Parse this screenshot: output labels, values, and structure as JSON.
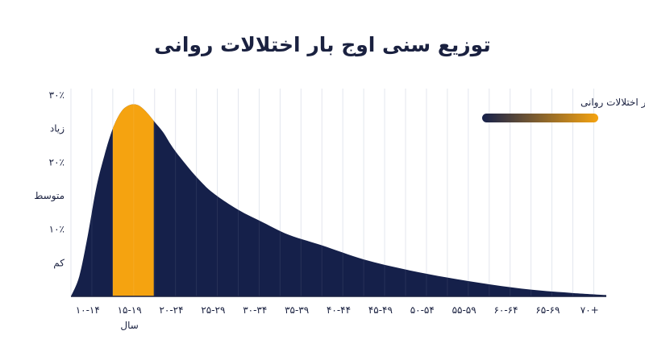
{
  "chart_data": {
    "type": "area",
    "title": "توزیع سنی اوج بار اختلالات روانی",
    "x_categories": [
      "10-14",
      "15-19",
      "20-24",
      "25-29",
      "30-34",
      "35-39",
      "40-44",
      "45-49",
      "50-54",
      "55-59",
      "60-64",
      "65-69",
      "70+"
    ],
    "x_tick_labels": [
      "۱۰-۱۴",
      "۱۵-۱۹",
      "۲۰-۲۴",
      "۲۵-۲۹",
      "۳۰-۳۴",
      "۳۵-۳۹",
      "۴۰-۴۴",
      "۴۵-۴۹",
      "۵۰-۵۴",
      "۵۵-۵۹",
      "۶۰-۶۴",
      "۶۵-۶۹",
      "۷۰+"
    ],
    "xlabel": "سال",
    "y_tick_labels": [
      {
        "value": 30,
        "label": "۳۰٪"
      },
      {
        "value": 25,
        "label": "زیاد"
      },
      {
        "value": 20,
        "label": "۲۰٪"
      },
      {
        "value": 15,
        "label": "متوسط"
      },
      {
        "value": 10,
        "label": "۱۰٪"
      },
      {
        "value": 5,
        "label": "کم"
      }
    ],
    "ylim": [
      0,
      30
    ],
    "series": [
      {
        "name": "بار اختلالات روانی",
        "x": [
          10,
          11,
          12,
          13,
          14,
          15,
          16,
          17,
          18,
          19,
          20,
          21,
          22,
          23,
          25,
          27,
          30,
          33,
          36,
          40,
          45,
          50,
          55,
          60,
          65,
          70,
          74
        ],
        "values": [
          0,
          3,
          9,
          16,
          21,
          25,
          27.5,
          28.5,
          28.5,
          27.5,
          26,
          24.5,
          22.5,
          20.8,
          17.8,
          15.4,
          12.9,
          11,
          9.2,
          7.6,
          5.5,
          4,
          2.8,
          1.8,
          1,
          0.5,
          0.2
        ]
      }
    ],
    "highlight": {
      "category": "15-19",
      "x_range": [
        15,
        19.9
      ]
    },
    "colors": {
      "area": "#15204a",
      "highlight": "#f5a310",
      "legend_gradient": [
        "#15204a",
        "#f5a310"
      ],
      "grid": "#e3e6ee",
      "text": "#1a2140"
    },
    "grid": true,
    "legend_position": "top-right"
  }
}
